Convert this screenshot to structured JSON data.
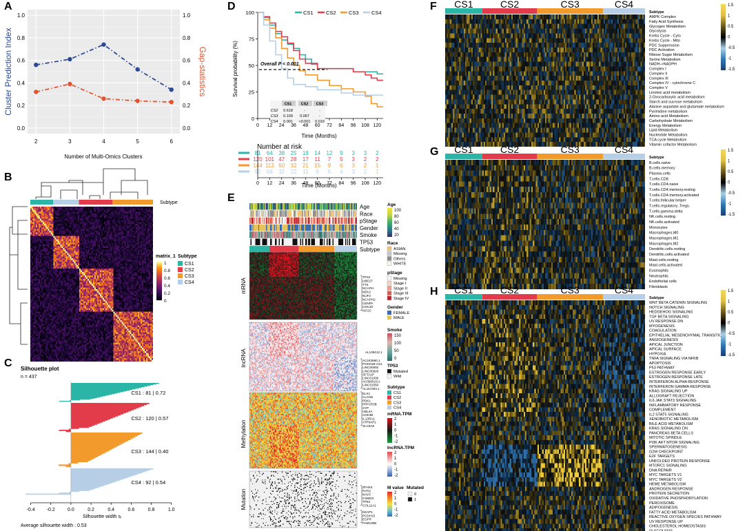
{
  "colors": {
    "cs1": "#2bb5a7",
    "cs2": "#e23b4a",
    "cs3": "#f39a2c",
    "cs4": "#b7cfe6",
    "blue_series": "#2b4a93",
    "red_series": "#e2542f",
    "panel_bg": "#ebebeb"
  },
  "panels": {
    "A": {
      "letter": "A",
      "ylabel_left": "Cluster Prediction Index",
      "ylabel_right": "Gap-statistics",
      "xlabel": "Number of Multi-Omics Clusters",
      "yticks_left": [
        "0.0",
        "0.2",
        "0.4",
        "0.6",
        "0.8",
        "1.0"
      ],
      "yticks_right": [
        "0.0",
        "0.2",
        "0.4",
        "0.6",
        "0.8",
        "1.0"
      ],
      "xticks": [
        "2",
        "3",
        "4",
        "5",
        "6"
      ]
    },
    "B": {
      "letter": "B",
      "annotation_label": "Subtype",
      "legend_title": "matrix_1",
      "legend_ticks": [
        "1",
        "0.8",
        "0.6",
        "0.4",
        "0.2",
        "0"
      ],
      "subtype_title": "Subtype",
      "subtypes": [
        "CS1",
        "CS2",
        "CS3",
        "CS4"
      ]
    },
    "C": {
      "letter": "C",
      "title": "Silhouette plot",
      "n_label": "n = 437",
      "xlabel": "Silhouette width sᵢ",
      "avg_label": "Average silhouette width :  0.53",
      "xticks": [
        "-0.4",
        "-0.2",
        "0.0",
        "0.2",
        "0.4",
        "0.6",
        "0.8",
        "1.0"
      ],
      "clusters": [
        {
          "text": "CS1 :   81  |  0.72"
        },
        {
          "text": "CS2 :   120  |  0.57"
        },
        {
          "text": "CS3 :   144  |  0.40"
        },
        {
          "text": "CS4 :   92  |  0.54"
        }
      ]
    },
    "D": {
      "letter": "D",
      "ylabel": "Survival probability (%)",
      "xlabel": "Time (Months)",
      "pvalue": "Overall P < 0.001",
      "legend": [
        "CS1",
        "CS2",
        "CS3",
        "CS4"
      ],
      "xticks": [
        "0",
        "12",
        "24",
        "36",
        "48",
        "60",
        "72",
        "84",
        "96",
        "108",
        "120"
      ],
      "yticks": [
        "0",
        "25",
        "50",
        "75",
        "100"
      ],
      "pairwise_header": [
        "",
        "CS1",
        "CS2",
        "CS3"
      ],
      "pairwise_rows": [
        [
          "CS2",
          "0.618",
          "-",
          "-"
        ],
        [
          "CS3",
          "0.109",
          "0.067",
          "-"
        ],
        [
          "CS4",
          "0.001",
          "<0.001",
          "0.016"
        ]
      ],
      "risk_title": "Number at risk",
      "risk_rows": [
        [
          "81",
          "64",
          "38",
          "25",
          "18",
          "14",
          "12",
          "9",
          "3",
          "3",
          "2"
        ],
        [
          "120",
          "101",
          "47",
          "28",
          "17",
          "11",
          "7",
          "5",
          "3",
          "2",
          "2"
        ],
        [
          "144",
          "113",
          "60",
          "32",
          "21",
          "15",
          "9",
          "6",
          "3",
          "2",
          "1"
        ],
        [
          "92",
          "64",
          "32",
          "22",
          "11",
          "6",
          "5",
          "4",
          "3",
          "2",
          "1"
        ]
      ]
    },
    "E": {
      "letter": "E",
      "track_labels": [
        "Age",
        "Race",
        "pStage",
        "Gender",
        "Smoke",
        "TP53",
        "Subtype"
      ],
      "block_labels": [
        "mRNA",
        "lncRNA",
        "Methylation",
        "Mutation"
      ],
      "mrna_genes": [
        "TPX2",
        "UBE2T",
        "TTK",
        "NCAPH",
        "NEK2",
        "NUF2",
        "NCAPH2",
        "CENPA",
        "CDC20",
        "KIF2C"
      ],
      "lncrna_genes": [
        "AL139412.1",
        "AC243960.1",
        "PCED1B-AS1",
        "LINC00092",
        "LINC00926",
        "SFTA1P",
        "LINC01936",
        "AC090519.2",
        "LINC01550",
        "AL157394.1"
      ],
      "meth_genes": [
        "ELK1",
        "CLCN5",
        "PDK1",
        "PPP1R3B",
        "SYP",
        "UBL4A",
        "CDK3B",
        "IL13RA1",
        "ATP6AP1",
        "SLC9A6"
      ],
      "mut_genes_top": [
        "ZFHX4",
        "RYR2",
        "NAV3",
        "CSMD3",
        "TP53",
        "COL11A1"
      ],
      "mut_genes_bottom": [
        "KEAP1",
        "PCDH15",
        "EGFR",
        "FAM135B"
      ],
      "legend": {
        "age_title": "Age",
        "age_ticks": [
          "100",
          "80",
          "60",
          "40",
          "20"
        ],
        "race_title": "Race",
        "race_items": [
          "ASIAN",
          "Missing",
          "Others",
          "WHITE"
        ],
        "pstage_title": "pStage",
        "pstage_items": [
          "Missing",
          "Stage I",
          "Stage II",
          "Stage III",
          "Stage IV"
        ],
        "gender_title": "Gender",
        "gender_items": [
          "FEMALE",
          "MALE"
        ],
        "smoke_title": "Smoke",
        "smoke_ticks": [
          "150",
          "100",
          "50",
          "0"
        ],
        "tp53_title": "TP53",
        "tp53_items": [
          "Mutated",
          "Wild"
        ],
        "subtype_title": "Subtype",
        "subtype_items": [
          "CS1",
          "CS2",
          "CS3",
          "CS4"
        ],
        "mrna_title": "mRNA.TPM",
        "mrna_ticks": [
          "2",
          "1",
          "0",
          "-1",
          "-2"
        ],
        "lnc_title": "lncRNA.TPM",
        "lnc_ticks": [
          "2",
          "1",
          "0",
          "-1",
          "-2"
        ],
        "mval_title": "M value",
        "mval_ticks": [
          "2",
          "1",
          "0",
          "-1",
          "-2"
        ],
        "mut_title": "Mutated",
        "mut_items": [
          "0",
          "1"
        ]
      }
    },
    "F": {
      "letter": "F",
      "header": [
        "CS1",
        "CS2",
        "CS3",
        "CS4"
      ],
      "subtype_label": "Subtype",
      "scale": [
        "1.5",
        "1",
        "0.5",
        "0",
        "-0.5",
        "-1",
        "-1.5"
      ],
      "rows": [
        "AMPK Complex",
        "Fatty Acid Synthesis",
        "Glycogen Metabolism",
        "Glycolysis",
        "Krebs Cycle - Cyto",
        "Krebs Cycle - Mito",
        "PDC Suppression",
        "PDC Activation",
        "Ribose Sugar Metabolism",
        "Serine Metabolism",
        "NADH->NADPH",
        "Complex I",
        "Complex II",
        "Complex III",
        "Complex IV - cytochrome C",
        "Complex V",
        "Linoleic acid metabolism",
        "2-Oxocarboxylic acid metabolism",
        "Starch and sucrose metabolism",
        "Alanine aspartate and glutamate metabolism",
        "Pyrimidine metabolism",
        "Amino acid Metabolism",
        "Carbohydrate Metabolism",
        "Energy Metabolism",
        "Lipid Metabolism",
        "Nucleotide Metabolism",
        "TCA cycle Metabolism",
        "Vitamin cofactor Metabolism"
      ]
    },
    "G": {
      "letter": "G",
      "header": [
        "CS1",
        "CS2",
        "CS3",
        "CS4"
      ],
      "subtype_label": "Subtype",
      "scale": [
        "1.5",
        "1",
        "0.5",
        "0",
        "-0.5",
        "-1",
        "-1.5"
      ],
      "rows": [
        "B.cells.naive",
        "B.cells.memory",
        "Plasma.cells",
        "T.cells.CD8",
        "T.cells.CD4.naive",
        "T.cells.CD4.memory.resting",
        "T.cells.CD4.memory.activated",
        "T.cells.follicular.helper",
        "T.cells.regulatory..Tregs.",
        "T.cells.gamma.delta",
        "NK.cells.resting",
        "NK.cells.activated",
        "Monocytes",
        "Macrophages.M0",
        "Macrophages.M1",
        "Macrophages.M2",
        "Dendritic.cells.resting",
        "Dendritic.cells.activated",
        "Mast.cells.resting",
        "Mast.cells.activated",
        "Eosinophils",
        "Neutrophils",
        "Endothelial cells",
        "Fibroblasts"
      ]
    },
    "H": {
      "letter": "H",
      "header": [
        "CS1",
        "CS2",
        "CS3",
        "CS4"
      ],
      "subtype_label": "Subtype",
      "scale": [
        "1.5",
        "1",
        "0.5",
        "0",
        "-0.5",
        "-1",
        "-1.5"
      ],
      "rows": [
        "WNT BETA CATENIN SIGNALING",
        "NOTCH SIGNALING",
        "HEDGEHOG SIGNALING",
        "TGF BETA SIGNALING",
        "UV RESPONSE DN",
        "MYOGENESIS",
        "COAGULATION",
        "EPITHELIAL MESENCHYMAL TRANSITION",
        "ANGIOGENESIS",
        "APICAL JUNCTION",
        "APICAL SURFACE",
        "HYPOXIA",
        "TNFA SIGNALING VIA NFKB",
        "APOPTOSIS",
        "P53 PATHWAY",
        "ESTROGEN RESPONSE EARLY",
        "ESTROGEN RESPONSE LATE",
        "INTERFERON ALPHA RESPONSE",
        "INTERFERON GAMMA RESPONSE",
        "KRAS SIGNALING UP",
        "ALLOGRAFT REJECTION",
        "IL6 JAK STAT3 SIGNALING",
        "INFLAMMATORY RESPONSE",
        "COMPLEMENT",
        "IL2 STAT5 SIGNALING",
        "XENOBIOTIC METABOLISM",
        "BILE ACID METABOLISM",
        "KRAS SIGNALING DN",
        "PANCREAS BETA CELLS",
        "MITOTIC SPINDLE",
        "PI3K AKT MTOR SIGNALING",
        "SPERMATOGENESIS",
        "G2M CHECKPOINT",
        "E2F TARGETS",
        "UNFOLDED PROTEIN RESPONSE",
        "MTORC1 SIGNALING",
        "DNA REPAIR",
        "MYC TARGETS V1",
        "MYC TARGETS V2",
        "HEME METABOLISM",
        "ANDROGEN RESPONSE",
        "PROTEIN SECRETION",
        "OXIDATIVE PHOSPHORYLATION",
        "PEROXISOME",
        "ADIPOGENESIS",
        "FATTY ACID METABOLISM",
        "REACTIVE OXYGEN SPECIES PATHWAY",
        "UV RESPONSE UP",
        "CHOLESTEROL HOMEOSTASIS",
        "GLYCOLYSIS"
      ]
    }
  },
  "chart_data": [
    {
      "type": "line",
      "panel": "A",
      "title": "",
      "xlabel": "Number of Multi-Omics Clusters",
      "ylabel": "Cluster Prediction Index",
      "ylabel_secondary": "Gap-statistics",
      "x": [
        2,
        3,
        4,
        5,
        6
      ],
      "series": [
        {
          "name": "Cluster Prediction Index",
          "values": [
            0.56,
            0.61,
            0.74,
            0.52,
            0.34
          ]
        },
        {
          "name": "Gap-statistics",
          "values": [
            0.32,
            0.39,
            0.26,
            0.24,
            0.23
          ]
        }
      ],
      "xlim": [
        1.75,
        6.25
      ],
      "ylim": [
        -0.05,
        1.05
      ]
    },
    {
      "type": "line",
      "panel": "D",
      "title": "",
      "xlabel": "Time (Months)",
      "ylabel": "Survival probability (%)",
      "xlim": [
        0,
        126
      ],
      "ylim": [
        0,
        100
      ],
      "series": [
        {
          "name": "CS1",
          "x": [
            0,
            6,
            12,
            18,
            24,
            30,
            36,
            42,
            48,
            54,
            60,
            72,
            84,
            96,
            108,
            120,
            126
          ],
          "values": [
            100,
            95,
            88,
            80,
            74,
            70,
            66,
            60,
            56,
            51,
            47,
            47,
            47,
            44,
            44,
            42,
            42
          ]
        },
        {
          "name": "CS2",
          "x": [
            0,
            6,
            12,
            18,
            24,
            30,
            36,
            42,
            48,
            60,
            72,
            84,
            96,
            108,
            114,
            120,
            126
          ],
          "values": [
            100,
            96,
            90,
            82,
            77,
            71,
            64,
            56,
            52,
            47,
            47,
            47,
            44,
            41,
            38,
            36,
            36
          ]
        },
        {
          "name": "CS3",
          "x": [
            0,
            6,
            12,
            18,
            24,
            30,
            36,
            42,
            48,
            60,
            72,
            84,
            96,
            108,
            114,
            120,
            126
          ],
          "values": [
            100,
            93,
            85,
            76,
            66,
            57,
            50,
            45,
            41,
            36,
            31,
            28,
            25,
            21,
            14,
            11,
            11
          ]
        },
        {
          "name": "CS4",
          "x": [
            0,
            6,
            12,
            18,
            24,
            30,
            36,
            48,
            60,
            72,
            84,
            96,
            120,
            126
          ],
          "values": [
            100,
            88,
            73,
            60,
            47,
            38,
            32,
            30,
            27,
            27,
            24,
            22,
            22,
            22
          ]
        }
      ]
    },
    {
      "type": "bar",
      "panel": "C",
      "title": "Silhouette plot",
      "xlabel": "Silhouette width sᵢ",
      "categories": [
        "CS1",
        "CS2",
        "CS3",
        "CS4"
      ],
      "sizes": [
        81,
        120,
        144,
        92
      ],
      "values": [
        0.72,
        0.57,
        0.4,
        0.54
      ],
      "xlim": [
        -0.5,
        1.05
      ]
    }
  ]
}
